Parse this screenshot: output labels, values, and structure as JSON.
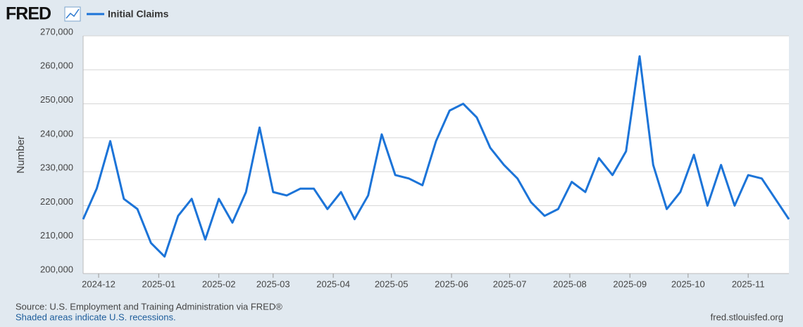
{
  "chart_data": {
    "type": "line",
    "brand": "FRED",
    "y_label": "Number",
    "source": "Source: U.S. Employment and Training Administration via FRED®",
    "note": "Shaded areas indicate U.S. recessions.",
    "credit": "fred.stlouisfed.org",
    "grid": true,
    "x": [
      "2024-11-23",
      "2024-11-30",
      "2024-12-07",
      "2024-12-14",
      "2024-12-21",
      "2024-12-28",
      "2025-01-04",
      "2025-01-11",
      "2025-01-18",
      "2025-01-25",
      "2025-02-01",
      "2025-02-08",
      "2025-02-15",
      "2025-02-22",
      "2025-03-01",
      "2025-03-08",
      "2025-03-15",
      "2025-03-22",
      "2025-03-29",
      "2025-04-05",
      "2025-04-12",
      "2025-04-19",
      "2025-04-26",
      "2025-05-03",
      "2025-05-10",
      "2025-05-17",
      "2025-05-24",
      "2025-05-31",
      "2025-06-07",
      "2025-06-14",
      "2025-06-21",
      "2025-06-28",
      "2025-07-05",
      "2025-07-12",
      "2025-07-19",
      "2025-07-26",
      "2025-08-02",
      "2025-08-09",
      "2025-08-16",
      "2025-08-23",
      "2025-08-30",
      "2025-09-06",
      "2025-09-13",
      "2025-09-20",
      "2025-09-27",
      "2025-10-04",
      "2025-10-11",
      "2025-10-18",
      "2025-10-25",
      "2025-11-01",
      "2025-11-08",
      "2025-11-15",
      "2025-11-22"
    ],
    "series": [
      {
        "name": "Initial Claims",
        "color": "#1c74d8",
        "values": [
          216000,
          225000,
          239000,
          222000,
          219000,
          209000,
          205000,
          217000,
          222000,
          210000,
          222000,
          215000,
          224000,
          243000,
          224000,
          223000,
          225000,
          225000,
          219000,
          224000,
          216000,
          223000,
          241000,
          229000,
          228000,
          226000,
          239000,
          248000,
          250000,
          246000,
          237000,
          232000,
          228000,
          221000,
          217000,
          219000,
          227000,
          224000,
          234000,
          229000,
          236000,
          264000,
          232000,
          219000,
          224000,
          235000,
          220000,
          232000,
          220000,
          229000,
          228000,
          222000,
          216000
        ]
      }
    ],
    "xlim": [
      "2024-11-23",
      "2025-11-22"
    ],
    "xticks": [
      {
        "value": "2024-12-01",
        "label": "2024-12"
      },
      {
        "value": "2025-01-01",
        "label": "2025-01"
      },
      {
        "value": "2025-02-01",
        "label": "2025-02"
      },
      {
        "value": "2025-03-01",
        "label": "2025-03"
      },
      {
        "value": "2025-04-01",
        "label": "2025-04"
      },
      {
        "value": "2025-05-01",
        "label": "2025-05"
      },
      {
        "value": "2025-06-01",
        "label": "2025-06"
      },
      {
        "value": "2025-07-01",
        "label": "2025-07"
      },
      {
        "value": "2025-08-01",
        "label": "2025-08"
      },
      {
        "value": "2025-09-01",
        "label": "2025-09"
      },
      {
        "value": "2025-10-01",
        "label": "2025-10"
      },
      {
        "value": "2025-11-01",
        "label": "2025-11"
      }
    ],
    "ylim": [
      200000,
      270000
    ],
    "yticks": [
      {
        "value": 200000,
        "label": "200,000"
      },
      {
        "value": 210000,
        "label": "210,000"
      },
      {
        "value": 220000,
        "label": "220,000"
      },
      {
        "value": 230000,
        "label": "230,000"
      },
      {
        "value": 240000,
        "label": "240,000"
      },
      {
        "value": 250000,
        "label": "250,000"
      },
      {
        "value": 260000,
        "label": "260,000"
      },
      {
        "value": 270000,
        "label": "270,000"
      }
    ]
  }
}
